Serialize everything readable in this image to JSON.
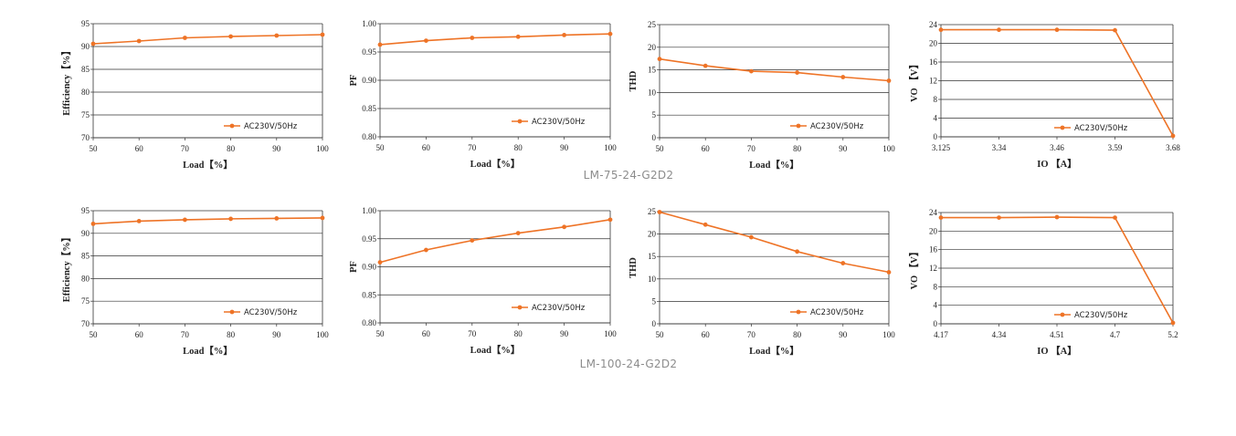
{
  "groups": [
    {
      "label": "LM-75-24-G2D2"
    },
    {
      "label": "LM-100-24-G2D2"
    }
  ],
  "colors": {
    "series": "#ee7326",
    "grid": "#333333",
    "text": "#222222"
  },
  "chart_data": [
    {
      "type": "line",
      "group": "LM-75-24-G2D2",
      "xlabel": "Load【%】",
      "ylabel": "Efficiency【%】",
      "xticks": [
        "50",
        "60",
        "70",
        "80",
        "90",
        "100"
      ],
      "yticks": [
        "70",
        "75",
        "80",
        "85",
        "90",
        "95"
      ],
      "xlim": [
        50,
        100
      ],
      "ylim": [
        70,
        95
      ],
      "grid": "horizontal",
      "legend_position": "bottom-right",
      "series": [
        {
          "name": "AC230V/50Hz",
          "x": [
            50,
            60,
            70,
            80,
            90,
            100
          ],
          "y": [
            90.6,
            91.2,
            91.9,
            92.2,
            92.4,
            92.6
          ]
        }
      ]
    },
    {
      "type": "line",
      "group": "LM-75-24-G2D2",
      "xlabel": "Load【%】",
      "ylabel": "PF",
      "xticks": [
        "50",
        "60",
        "70",
        "80",
        "90",
        "100"
      ],
      "yticks": [
        "0.80",
        "0.85",
        "0.90",
        "0.95",
        "1.00"
      ],
      "xlim": [
        50,
        100
      ],
      "ylim": [
        0.8,
        1.0
      ],
      "grid": "horizontal",
      "legend_position": "bottom-right",
      "series": [
        {
          "name": "AC230V/50Hz",
          "x": [
            50,
            60,
            70,
            80,
            90,
            100
          ],
          "y": [
            0.963,
            0.97,
            0.975,
            0.977,
            0.98,
            0.982
          ]
        }
      ]
    },
    {
      "type": "line",
      "group": "LM-75-24-G2D2",
      "xlabel": "Load【%】",
      "ylabel": "THD",
      "xticks": [
        "50",
        "60",
        "70",
        "80",
        "90",
        "100"
      ],
      "yticks": [
        "0",
        "5",
        "10",
        "15",
        "20",
        "25"
      ],
      "xlim": [
        50,
        100
      ],
      "ylim": [
        0,
        25
      ],
      "grid": "horizontal",
      "legend_position": "bottom-right",
      "series": [
        {
          "name": "AC230V/50Hz",
          "x": [
            50,
            60,
            70,
            80,
            90,
            100
          ],
          "y": [
            17.4,
            15.9,
            14.7,
            14.4,
            13.4,
            12.6
          ]
        }
      ]
    },
    {
      "type": "line",
      "group": "LM-75-24-G2D2",
      "xlabel": "IO 【A】",
      "ylabel": "VO 【V】",
      "xticks": [
        "3.125",
        "3.34",
        "3.46",
        "3.59",
        "3.68"
      ],
      "yticks": [
        "0",
        "4",
        "8",
        "12",
        "16",
        "20",
        "24"
      ],
      "xlim": [
        0,
        4
      ],
      "ylim": [
        0,
        24
      ],
      "grid": "horizontal",
      "legend_position": "bottom-right",
      "series": [
        {
          "name": "AC230V/50Hz",
          "x": [
            0,
            1,
            2,
            3,
            4
          ],
          "y": [
            22.9,
            22.9,
            22.9,
            22.8,
            0.2
          ]
        }
      ]
    },
    {
      "type": "line",
      "group": "LM-100-24-G2D2",
      "xlabel": "Load【%】",
      "ylabel": "Efficiency【%】",
      "xticks": [
        "50",
        "60",
        "70",
        "80",
        "90",
        "100"
      ],
      "yticks": [
        "70",
        "75",
        "80",
        "85",
        "90",
        "95"
      ],
      "xlim": [
        50,
        100
      ],
      "ylim": [
        70,
        95
      ],
      "grid": "horizontal",
      "legend_position": "bottom-right",
      "series": [
        {
          "name": "AC230V/50Hz",
          "x": [
            50,
            60,
            70,
            80,
            90,
            100
          ],
          "y": [
            92.1,
            92.7,
            93.0,
            93.2,
            93.3,
            93.4
          ]
        }
      ]
    },
    {
      "type": "line",
      "group": "LM-100-24-G2D2",
      "xlabel": "Load【%】",
      "ylabel": "PF",
      "xticks": [
        "50",
        "60",
        "70",
        "80",
        "90",
        "100"
      ],
      "yticks": [
        "0.80",
        "0.85",
        "0.90",
        "0.95",
        "1.00"
      ],
      "xlim": [
        50,
        100
      ],
      "ylim": [
        0.8,
        1.0
      ],
      "grid": "horizontal",
      "legend_position": "bottom-right",
      "series": [
        {
          "name": "AC230V/50Hz",
          "x": [
            50,
            60,
            70,
            80,
            90,
            100
          ],
          "y": [
            0.908,
            0.93,
            0.947,
            0.96,
            0.971,
            0.984
          ]
        }
      ]
    },
    {
      "type": "line",
      "group": "LM-100-24-G2D2",
      "xlabel": "Load【%】",
      "ylabel": "THD",
      "xticks": [
        "50",
        "60",
        "70",
        "80",
        "90",
        "100"
      ],
      "yticks": [
        "0",
        "5",
        "10",
        "15",
        "20",
        "25"
      ],
      "xlim": [
        50,
        100
      ],
      "ylim": [
        0,
        25
      ],
      "grid": "horizontal",
      "legend_position": "bottom-right",
      "series": [
        {
          "name": "AC230V/50Hz",
          "x": [
            50,
            60,
            70,
            80,
            90,
            100
          ],
          "y": [
            24.9,
            22.1,
            19.3,
            16.1,
            13.5,
            11.5
          ]
        }
      ]
    },
    {
      "type": "line",
      "group": "LM-100-24-G2D2",
      "xlabel": "IO 【A】",
      "ylabel": "VO 【V】",
      "xticks": [
        "4.17",
        "4.34",
        "4.51",
        "4.7",
        "5.2"
      ],
      "yticks": [
        "0",
        "4",
        "8",
        "12",
        "16",
        "20",
        "24"
      ],
      "xlim": [
        0,
        4
      ],
      "ylim": [
        0,
        24
      ],
      "grid": "horizontal",
      "legend_position": "bottom-right",
      "series": [
        {
          "name": "AC230V/50Hz",
          "x": [
            0,
            1,
            2,
            3,
            4
          ],
          "y": [
            22.9,
            22.9,
            23.0,
            22.9,
            0.2
          ]
        }
      ]
    }
  ]
}
